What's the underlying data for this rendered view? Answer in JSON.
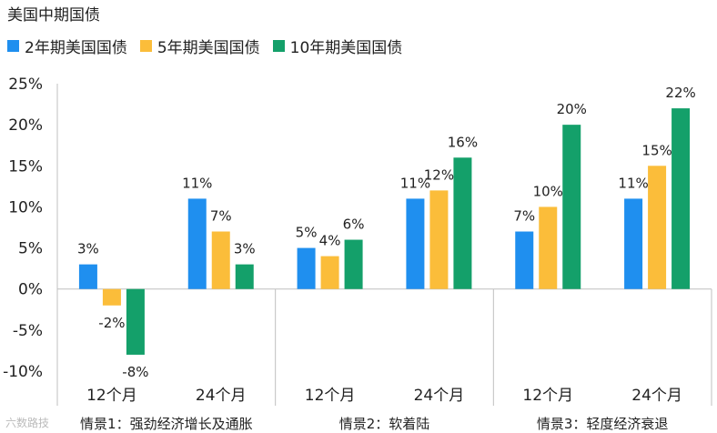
{
  "title": "美国中期国债",
  "watermark": "六数路技",
  "colors": {
    "2y": "#1f8fef",
    "5y": "#fbbd3a",
    "10y": "#14a06a",
    "axis": "#bfbfbf",
    "text": "#222222"
  },
  "chart_data": {
    "type": "bar",
    "ylim": [
      -10,
      25
    ],
    "yticks": [
      -10,
      -5,
      0,
      5,
      10,
      15,
      20,
      25
    ],
    "ytick_labels": [
      "-10%",
      "-5%",
      "0%",
      "5%",
      "10%",
      "15%",
      "20%",
      "25%"
    ],
    "groups": [
      {
        "scenario": "情景1：强劲经济增长及通胀",
        "periods": [
          "12个月",
          "24个月"
        ]
      },
      {
        "scenario": "情景2：软着陆",
        "periods": [
          "12个月",
          "24个月"
        ]
      },
      {
        "scenario": "情景3：轻度经济衰退",
        "periods": [
          "12个月",
          "24个月"
        ]
      }
    ],
    "series": [
      {
        "name": "2年期美国国债",
        "key": "2y",
        "values": [
          3,
          11,
          5,
          11,
          7,
          11
        ],
        "labels": [
          "3%",
          "11%",
          "5%",
          "11%",
          "7%",
          "11%"
        ]
      },
      {
        "name": "5年期美国国债",
        "key": "5y",
        "values": [
          -2,
          7,
          4,
          12,
          10,
          15
        ],
        "labels": [
          "-2%",
          "7%",
          "4%",
          "12%",
          "10%",
          "15%"
        ]
      },
      {
        "name": "10年期美国国债",
        "key": "10y",
        "values": [
          -8,
          3,
          6,
          16,
          20,
          22
        ],
        "labels": [
          "-8%",
          "3%",
          "6%",
          "16%",
          "20%",
          "22%"
        ]
      }
    ]
  }
}
